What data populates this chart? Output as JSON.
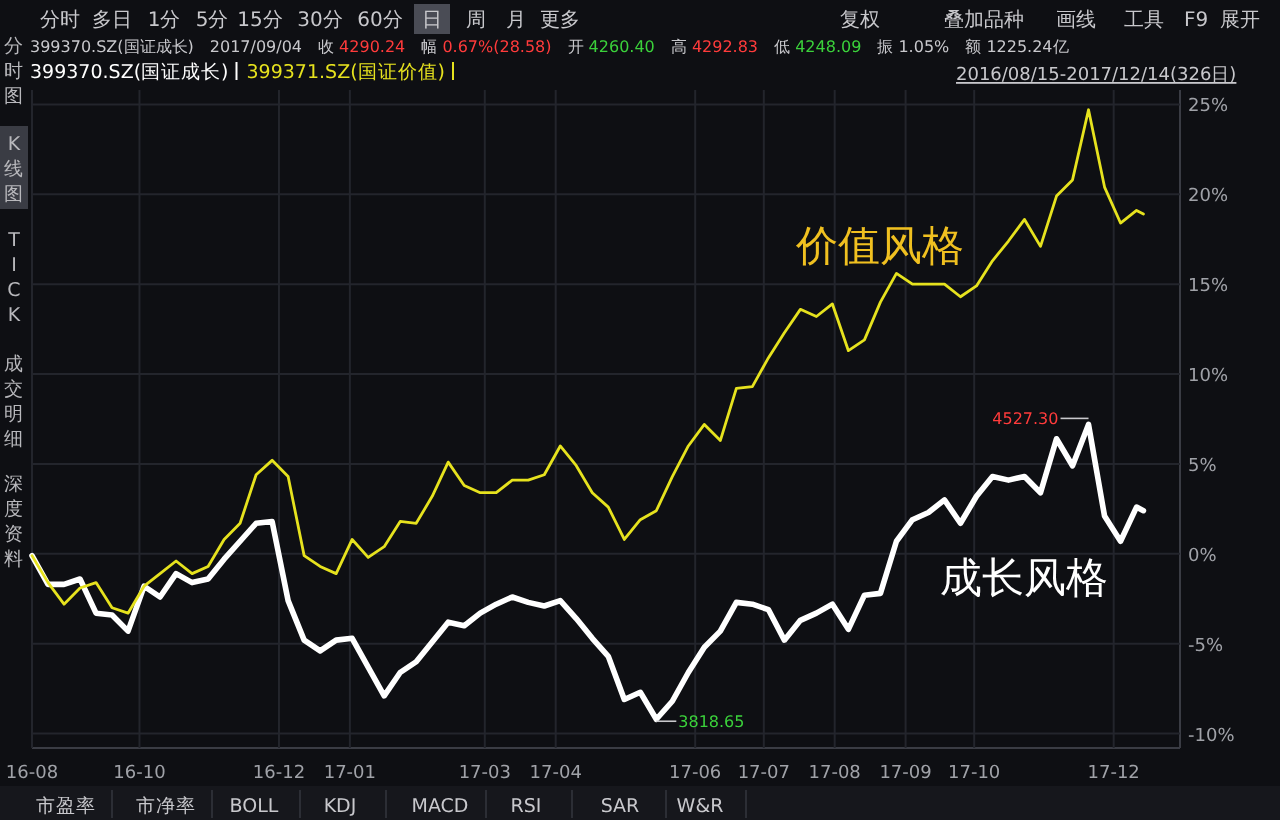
{
  "chart_data": {
    "type": "line",
    "x": [
      "2016-08-15",
      "2016-08-22",
      "2016-08-29",
      "2016-09-05",
      "2016-09-12",
      "2016-09-19",
      "2016-09-26",
      "2016-10-03",
      "2016-10-10",
      "2016-10-17",
      "2016-10-24",
      "2016-10-31",
      "2016-11-07",
      "2016-11-14",
      "2016-11-21",
      "2016-11-28",
      "2016-12-05",
      "2016-12-12",
      "2016-12-19",
      "2016-12-26",
      "2017-01-02",
      "2017-01-09",
      "2017-01-16",
      "2017-01-23",
      "2017-01-30",
      "2017-02-06",
      "2017-02-13",
      "2017-02-20",
      "2017-02-27",
      "2017-03-06",
      "2017-03-13",
      "2017-03-20",
      "2017-03-27",
      "2017-04-03",
      "2017-04-10",
      "2017-04-17",
      "2017-04-24",
      "2017-05-01",
      "2017-05-08",
      "2017-05-15",
      "2017-05-22",
      "2017-05-29",
      "2017-06-05",
      "2017-06-12",
      "2017-06-19",
      "2017-06-26",
      "2017-07-03",
      "2017-07-10",
      "2017-07-17",
      "2017-07-24",
      "2017-07-31",
      "2017-08-07",
      "2017-08-14",
      "2017-08-21",
      "2017-08-28",
      "2017-09-04",
      "2017-09-11",
      "2017-09-18",
      "2017-09-25",
      "2017-10-02",
      "2017-10-09",
      "2017-10-16",
      "2017-10-23",
      "2017-10-30",
      "2017-11-06",
      "2017-11-13",
      "2017-11-20",
      "2017-11-27",
      "2017-12-04",
      "2017-12-11",
      "2017-12-14"
    ],
    "series": [
      {
        "name": "399370.SZ(国证成长)",
        "color": "#ffffff",
        "values": [
          -0.1,
          -1.7,
          -1.7,
          -1.4,
          -3.3,
          -3.4,
          -4.3,
          -1.8,
          -2.4,
          -1.1,
          -1.6,
          -1.4,
          -0.3,
          0.7,
          1.7,
          1.8,
          -2.6,
          -4.8,
          -5.4,
          -4.8,
          -4.7,
          -6.3,
          -7.9,
          -6.6,
          -6.0,
          -4.9,
          -3.8,
          -4.0,
          -3.3,
          -2.8,
          -2.4,
          -2.7,
          -2.9,
          -2.6,
          -3.6,
          -4.7,
          -5.7,
          -8.1,
          -7.7,
          -9.2,
          -8.2,
          -6.6,
          -5.2,
          -4.3,
          -2.7,
          -2.8,
          -3.1,
          -4.8,
          -3.7,
          -3.3,
          -2.8,
          -4.2,
          -2.3,
          -2.2,
          0.7,
          1.9,
          2.3,
          3.0,
          1.7,
          3.2,
          4.3,
          4.1,
          4.3,
          3.4,
          6.4,
          4.9,
          7.2,
          2.1,
          0.7,
          2.6,
          2.4
        ]
      },
      {
        "name": "399371.SZ(国证价值)",
        "color": "#e6e21e",
        "values": [
          -0.1,
          -1.6,
          -2.8,
          -1.9,
          -1.6,
          -3.0,
          -3.3,
          -1.8,
          -1.1,
          -0.4,
          -1.1,
          -0.7,
          0.8,
          1.7,
          4.4,
          5.2,
          4.3,
          -0.1,
          -0.7,
          -1.1,
          0.8,
          -0.2,
          0.4,
          1.8,
          1.7,
          3.2,
          5.1,
          3.8,
          3.4,
          3.4,
          4.1,
          4.1,
          4.4,
          6.0,
          4.9,
          3.4,
          2.6,
          0.8,
          1.9,
          2.4,
          4.3,
          6.0,
          7.2,
          6.3,
          9.2,
          9.3,
          10.9,
          12.3,
          13.6,
          13.2,
          13.9,
          11.3,
          11.9,
          14.0,
          15.6,
          15.0,
          15.0,
          15.0,
          14.3,
          14.9,
          16.3,
          17.4,
          18.6,
          17.1,
          19.9,
          20.8,
          24.7,
          20.4,
          18.4,
          19.1,
          18.9
        ]
      }
    ],
    "xlim": [
      "2016-08-15",
      "2017-12-30"
    ],
    "ylim": [
      -10.8,
      25.8
    ],
    "xticks": [
      {
        "value": "2016-08-15",
        "label": "16-08"
      },
      {
        "value": "2016-10-01",
        "label": "16-10"
      },
      {
        "value": "2016-12-01",
        "label": "16-12"
      },
      {
        "value": "2017-01-01",
        "label": "17-01"
      },
      {
        "value": "2017-03-01",
        "label": "17-03"
      },
      {
        "value": "2017-04-01",
        "label": "17-04"
      },
      {
        "value": "2017-06-01",
        "label": "17-06"
      },
      {
        "value": "2017-07-01",
        "label": "17-07"
      },
      {
        "value": "2017-08-01",
        "label": "17-08"
      },
      {
        "value": "2017-09-01",
        "label": "17-09"
      },
      {
        "value": "2017-10-01",
        "label": "17-10"
      },
      {
        "value": "2017-12-01",
        "label": "17-12"
      }
    ],
    "yticks": [
      {
        "value": 25,
        "label": "25%"
      },
      {
        "value": 20,
        "label": "20%"
      },
      {
        "value": 15,
        "label": "15%"
      },
      {
        "value": 10,
        "label": "10%"
      },
      {
        "value": 5,
        "label": "5%"
      },
      {
        "value": 0,
        "label": "0%"
      },
      {
        "value": -5,
        "label": "-5%"
      },
      {
        "value": -10,
        "label": "-10%"
      }
    ],
    "grid": true,
    "legend": "top left",
    "annotations": [
      "分时",
      "多日",
      "1分",
      "5分",
      "15分",
      "30分",
      "60分",
      "日",
      "周",
      "月",
      "更多",
      "复权",
      "叠加品种",
      "画线",
      "工具",
      "F9",
      "展开",
      "399370.SZ(国证成长)",
      "2017/09/04",
      "收 4290.24",
      "幅 0.67%(28.58)",
      "开 4260.40",
      "高 4292.83",
      "低 4248.09",
      "振 1.05%",
      "额 1225.24亿",
      "2016/08/15-2017/12/14(326日)",
      "分时图",
      "K线图",
      "TICK",
      "成交明细",
      "深度资料",
      "市盈率",
      "市净率",
      "BOLL",
      "KDJ",
      "MACD",
      "RSI",
      "SAR",
      "W&R",
      "价值风格",
      "成长风格",
      {
        "text": "4527.30",
        "x": "2017-11-20",
        "y": 7.2
      },
      {
        "text": "3818.65",
        "x": "2017-05-15",
        "y": -9.2
      }
    ]
  }
}
